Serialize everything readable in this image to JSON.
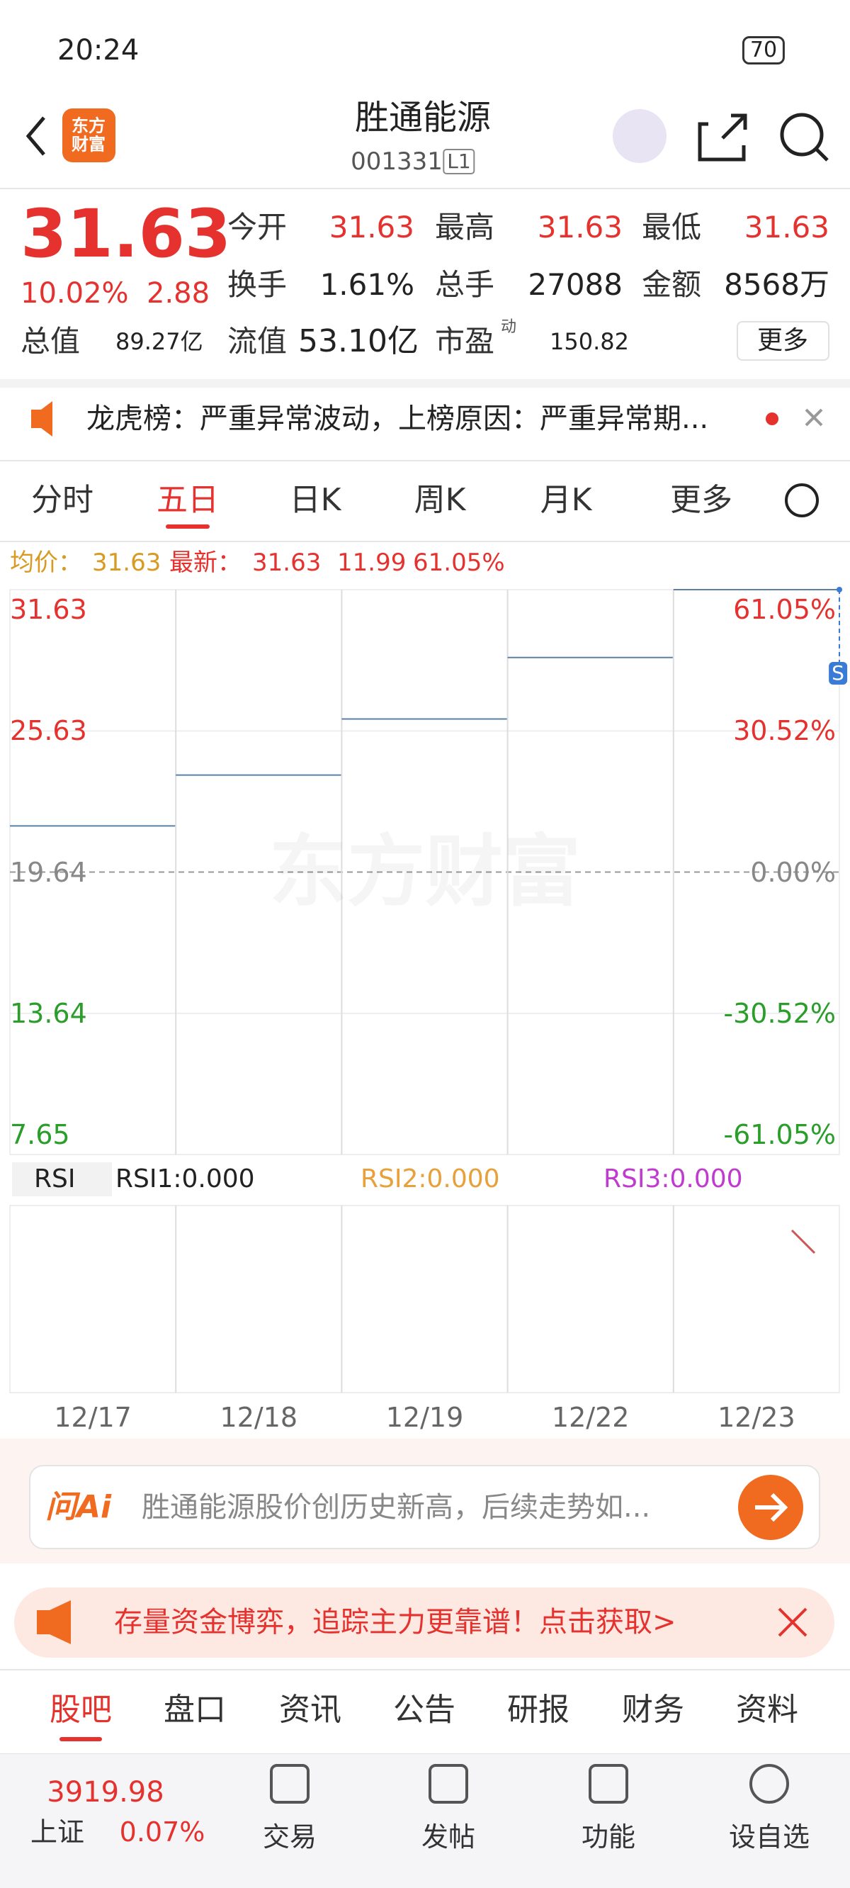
{
  "status_bar": {
    "time": "20:24",
    "battery": "70"
  },
  "header": {
    "logo": "东方财富",
    "title": "胜通能源",
    "code": "001331",
    "level": "L1"
  },
  "quote": {
    "price": "31.63",
    "change_pct": "10.02%",
    "change": "2.88",
    "stats": [
      {
        "label": "今开",
        "value": "31.63"
      },
      {
        "label": "最高",
        "value": "31.63"
      },
      {
        "label": "最低",
        "value": "31.63"
      },
      {
        "label": "换手",
        "value": "1.61%"
      },
      {
        "label": "总手",
        "value": "27088"
      },
      {
        "label": "金额",
        "value": "8568万"
      }
    ],
    "total_cap_label": "总值",
    "total_cap": "89.27亿",
    "float_cap_label": "流值",
    "float_cap": "53.10亿",
    "pe_label": "市盈",
    "pe_sup": "动",
    "pe": "150.82",
    "more": "更多"
  },
  "notice": "龙虎榜：严重异常波动，上榜原因：严重异常期...",
  "tabs": [
    "分时",
    "五日",
    "日K",
    "周K",
    "月K",
    "更多"
  ],
  "chart_info": {
    "avg_label": "均价：",
    "avg": "31.63",
    "latest_label": "最新：",
    "latest": "31.63",
    "change": "11.99",
    "change_pct": "61.05%"
  },
  "chart_data": {
    "type": "line",
    "x": [
      "12/17",
      "12/18",
      "12/19",
      "12/22",
      "12/23"
    ],
    "values": [
      21.6,
      23.76,
      26.14,
      28.75,
      31.63
    ],
    "color": "#5b7fa6",
    "ylim": [
      7.65,
      31.63
    ],
    "yticks": [
      7.65,
      13.64,
      19.64,
      25.63,
      31.63
    ],
    "y2lim": [
      -61.05,
      61.05
    ],
    "y2ticks": [
      {
        "value": -61.05,
        "label": "-61.05%"
      },
      {
        "value": -30.52,
        "label": "-30.52%"
      },
      {
        "value": 0,
        "label": "0.00%"
      },
      {
        "value": 30.52,
        "label": "30.52%"
      },
      {
        "value": 61.05,
        "label": "61.05%"
      }
    ],
    "grid": true,
    "watermark": "东方财富",
    "marker": "S"
  },
  "indicator": {
    "name": "RSI",
    "rsi1": "RSI1:0.000",
    "rsi2": "RSI2:0.000",
    "rsi3": "RSI3:0.000"
  },
  "ai_bar": {
    "label": "问Ai",
    "text": "胜通能源股价创历史新高，后续走势如..."
  },
  "promo": "存量资金博弈，追踪主力更靠谱！点击获取>",
  "bottom_tabs": [
    "股吧",
    "盘口",
    "资讯",
    "公告",
    "研报",
    "财务",
    "资料"
  ],
  "nav": {
    "index_value": "3919.98",
    "index_name": "上证",
    "index_pct": "0.07%",
    "items": [
      "交易",
      "发帖",
      "功能",
      "设自选"
    ]
  }
}
